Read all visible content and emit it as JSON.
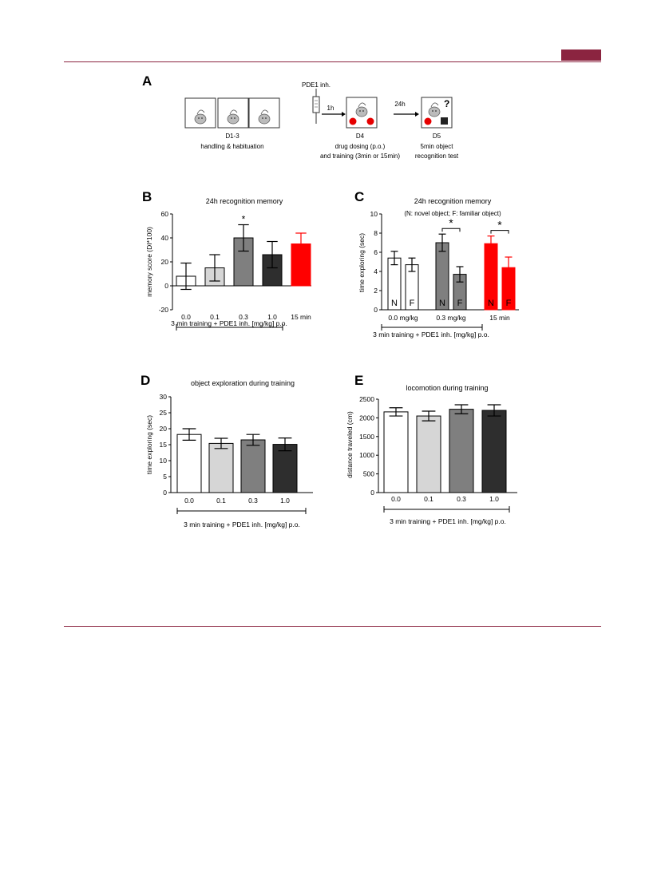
{
  "colors": {
    "accent": "#8b2440",
    "white": "#ffffff",
    "light": "#d6d6d6",
    "mid": "#7f7f7f",
    "dark": "#2e2e2e",
    "red": "#ff0000"
  },
  "panelA": {
    "label": "A",
    "syringe_label": "PDE1 inh.",
    "arrow1": "1h",
    "arrow2": "24h",
    "qmark": "?",
    "step1": {
      "day": "D1-3",
      "desc": "handling & habituation"
    },
    "step2": {
      "day": "D4",
      "desc1": "drug dosing (p.o.)",
      "desc2": "and training (3min or 15min)"
    },
    "step3": {
      "day": "D5",
      "desc1": "5min object",
      "desc2": "recognition test"
    }
  },
  "chart_data": [
    {
      "panel": "B",
      "type": "bar",
      "title": "24h recognition memory",
      "ylabel": "memory score (DI*100)",
      "ylim": [
        -20,
        60
      ],
      "yticks": [
        -20,
        0,
        20,
        40,
        60
      ],
      "categories": [
        "0.0",
        "0.1",
        "0.3",
        "1.0",
        "15 min"
      ],
      "values": [
        8,
        15,
        40,
        26,
        35
      ],
      "errors": [
        11,
        11,
        11,
        11,
        9
      ],
      "colors": [
        "white",
        "light",
        "mid",
        "dark",
        "red"
      ],
      "annotations": [
        {
          "bar": 2,
          "text": "*"
        }
      ],
      "bracket_label": "3 min training + PDE1 inh. [mg/kg] p.o."
    },
    {
      "panel": "C",
      "type": "bar",
      "title": "24h recognition memory",
      "subtitle": "(N: novel object; F: familiar object)",
      "ylabel": "time exploring (sec)",
      "ylim": [
        0,
        10
      ],
      "yticks": [
        0,
        2,
        4,
        6,
        8,
        10
      ],
      "categories": [
        "0.0 mg/kg",
        "0.3 mg/kg",
        "15 min"
      ],
      "bar_labels": [
        "N",
        "F"
      ],
      "series": [
        {
          "name": "N",
          "values": [
            5.4,
            7.0,
            6.9
          ],
          "errors": [
            0.7,
            0.9,
            0.8
          ]
        },
        {
          "name": "F",
          "values": [
            4.7,
            3.7,
            4.4
          ],
          "errors": [
            0.7,
            0.8,
            1.1
          ]
        }
      ],
      "colors": [
        "white",
        "mid",
        "red"
      ],
      "significance": [
        "*",
        "*"
      ],
      "bracket_label": "3 min training + PDE1 inh. [mg/kg] p.o."
    },
    {
      "panel": "D",
      "type": "bar",
      "title": "object exploration during training",
      "ylabel": "time exploring (sec)",
      "ylim": [
        0,
        30
      ],
      "yticks": [
        0,
        5,
        10,
        15,
        20,
        25,
        30
      ],
      "categories": [
        "0.0",
        "0.1",
        "0.3",
        "1.0"
      ],
      "values": [
        18.2,
        15.4,
        16.5,
        15.1
      ],
      "errors": [
        1.8,
        1.6,
        1.7,
        2.0
      ],
      "colors": [
        "white",
        "light",
        "mid",
        "dark"
      ],
      "bracket_label": "3 min training + PDE1 inh. [mg/kg] p.o."
    },
    {
      "panel": "E",
      "type": "bar",
      "title": "locomotion during training",
      "ylabel": "distance traveled (cm)",
      "ylim": [
        0,
        2500
      ],
      "yticks": [
        0,
        500,
        1000,
        1500,
        2000,
        2500
      ],
      "categories": [
        "0.0",
        "0.1",
        "0.3",
        "1.0"
      ],
      "values": [
        2160,
        2050,
        2230,
        2200
      ],
      "errors": [
        110,
        130,
        120,
        150
      ],
      "colors": [
        "white",
        "light",
        "mid",
        "dark"
      ],
      "bracket_label": "3 min training + PDE1 inh. [mg/kg] p.o."
    }
  ]
}
